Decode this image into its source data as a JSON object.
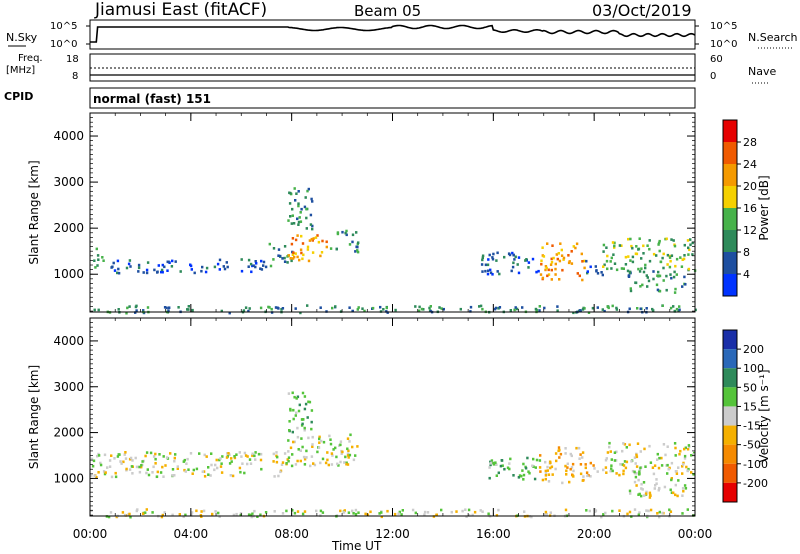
{
  "header": {
    "radar": "Jiamusi East (fitACF)",
    "beam": "Beam 05",
    "date": "03/Oct/2019"
  },
  "top_panels": {
    "nsky_label": "N.Sky",
    "nsearch_label": "N.Search",
    "count_tick_high": "10^5",
    "count_tick_low": "10^0",
    "freq_label": "Freq.",
    "freq_unit": "[MHz]",
    "freq_tick_high": "18",
    "freq_tick_low": "8",
    "nave_label": "Nave",
    "nave_tick_high": "60",
    "nave_tick_low": "0",
    "cpid_label": "CPID",
    "cpid_value": "normal (fast) 151"
  },
  "colors": {
    "power": [
      "#0033ff",
      "#1e4fa0",
      "#2e8a5a",
      "#47b24a",
      "#f5d000",
      "#f59a00",
      "#f05a00",
      "#e60000"
    ],
    "velocity": [
      "#1a2fa8",
      "#2a68b8",
      "#2e8a5a",
      "#55c43a",
      "#cccccc",
      "#f5b000",
      "#f58a00",
      "#f05a00",
      "#e60000"
    ]
  },
  "chart_data": [
    {
      "type": "heatmap",
      "name": "power",
      "ylabel": "Slant Range [km]",
      "xlabel": "",
      "x_ticks": [
        "00:00",
        "04:00",
        "08:00",
        "12:00",
        "16:00",
        "20:00",
        "00:00"
      ],
      "y_ticks": [
        "1000",
        "2000",
        "3000",
        "4000"
      ],
      "xlim_hours": [
        0,
        24
      ],
      "ylim_km": [
        180,
        4500
      ],
      "colorbar": {
        "label": "Power [dB]",
        "ticks": [
          "4",
          "8",
          "12",
          "16",
          "20",
          "24",
          "28"
        ]
      },
      "regions": [
        {
          "t0": 0.0,
          "t1": 0.5,
          "r0": 1100,
          "r1": 1600,
          "level": 3
        },
        {
          "t0": 0.5,
          "t1": 7.0,
          "r0": 1050,
          "r1": 1350,
          "level": 1
        },
        {
          "t0": 7.0,
          "t1": 8.0,
          "r0": 1200,
          "r1": 1700,
          "level": 2
        },
        {
          "t0": 7.8,
          "t1": 9.5,
          "r0": 1300,
          "r1": 1900,
          "level": 5
        },
        {
          "t0": 7.8,
          "t1": 8.8,
          "r0": 2000,
          "r1": 2900,
          "level": 2
        },
        {
          "t0": 9.5,
          "t1": 10.6,
          "r0": 1500,
          "r1": 2000,
          "level": 2
        },
        {
          "t0": 15.5,
          "t1": 17.8,
          "r0": 1000,
          "r1": 1500,
          "level": 1
        },
        {
          "t0": 17.8,
          "t1": 19.6,
          "r0": 900,
          "r1": 1700,
          "level": 5
        },
        {
          "t0": 19.6,
          "t1": 20.3,
          "r0": 1000,
          "r1": 1400,
          "level": 1
        },
        {
          "t0": 20.3,
          "t1": 24.0,
          "r0": 1100,
          "r1": 1800,
          "level": 3
        },
        {
          "t0": 21.3,
          "t1": 23.6,
          "r0": 600,
          "r1": 1100,
          "level": 2
        },
        {
          "t0": 0.0,
          "t1": 24.0,
          "r0": 180,
          "r1": 350,
          "level": 2
        }
      ]
    },
    {
      "type": "heatmap",
      "name": "velocity",
      "ylabel": "Slant Range [km]",
      "xlabel": "Time UT",
      "x_ticks": [
        "00:00",
        "04:00",
        "08:00",
        "12:00",
        "16:00",
        "20:00",
        "00:00"
      ],
      "y_ticks": [
        "1000",
        "2000",
        "3000",
        "4000"
      ],
      "xlim_hours": [
        0,
        24
      ],
      "ylim_km": [
        180,
        4500
      ],
      "colorbar": {
        "label": "Velocity [m s⁻¹]",
        "ticks": [
          "200",
          "100",
          "50",
          "15",
          "-15",
          "-50",
          "-100",
          "-200"
        ]
      },
      "regions": [
        {
          "t0": 0.0,
          "t1": 7.8,
          "r0": 1050,
          "r1": 1600,
          "level": 4
        },
        {
          "t0": 7.8,
          "t1": 10.6,
          "r0": 1300,
          "r1": 2000,
          "level": 4
        },
        {
          "t0": 7.8,
          "t1": 8.8,
          "r0": 2000,
          "r1": 2900,
          "level": 3
        },
        {
          "t0": 15.8,
          "t1": 17.8,
          "r0": 1000,
          "r1": 1500,
          "level": 3
        },
        {
          "t0": 17.8,
          "t1": 19.6,
          "r0": 900,
          "r1": 1700,
          "level": 5
        },
        {
          "t0": 19.6,
          "t1": 20.3,
          "r0": 1000,
          "r1": 1400,
          "level": 5
        },
        {
          "t0": 20.3,
          "t1": 24.0,
          "r0": 1100,
          "r1": 1800,
          "level": 4
        },
        {
          "t0": 21.3,
          "t1": 23.6,
          "r0": 600,
          "r1": 1100,
          "level": 4
        },
        {
          "t0": 0.0,
          "t1": 24.0,
          "r0": 180,
          "r1": 350,
          "level": 4
        }
      ]
    }
  ]
}
